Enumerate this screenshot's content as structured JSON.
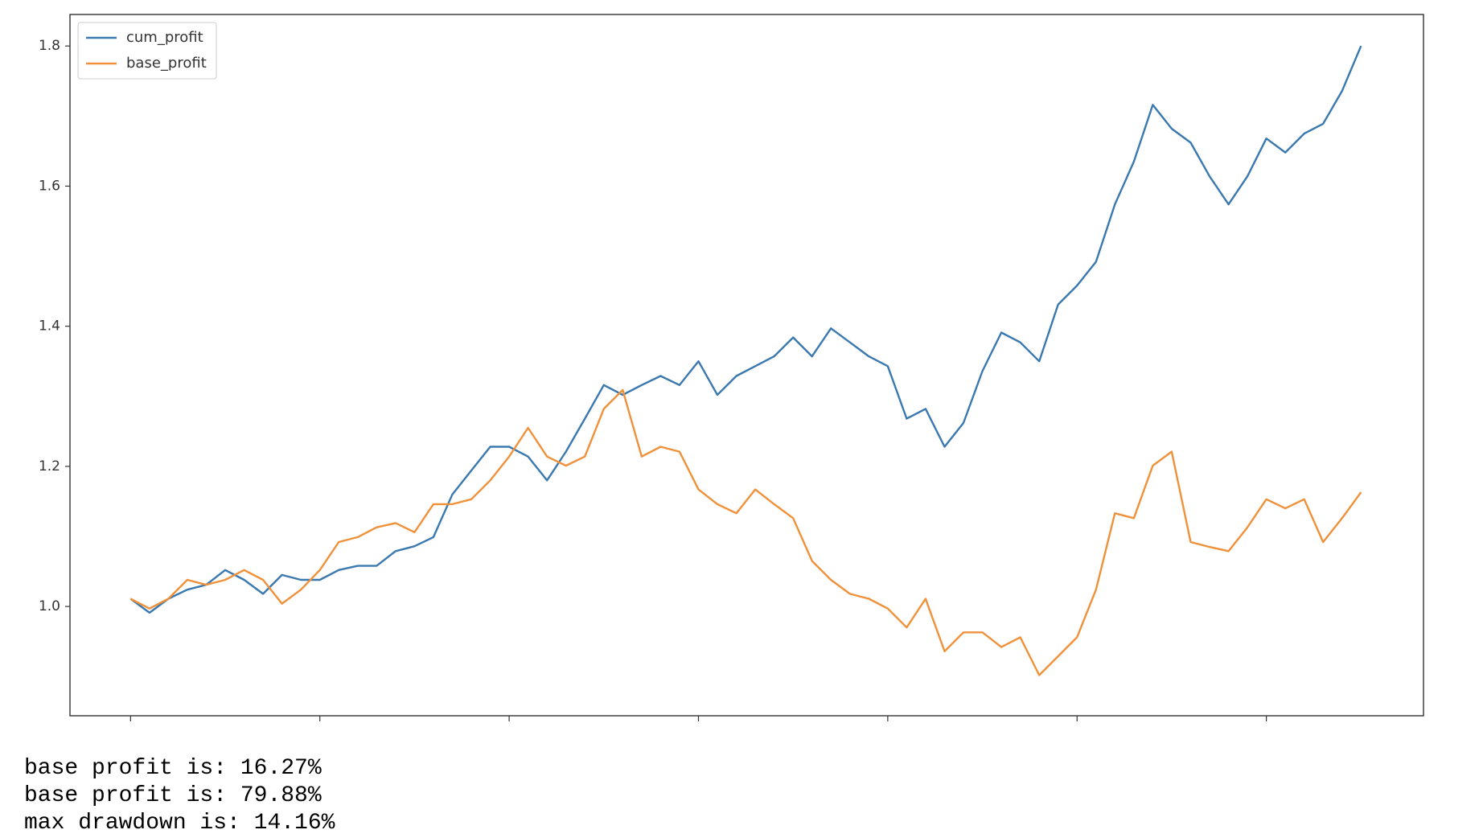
{
  "chart_data": {
    "type": "line",
    "x": [
      0,
      20,
      40,
      60,
      80,
      100,
      120,
      140,
      160,
      180,
      200,
      220,
      240,
      260,
      280,
      300,
      320,
      340,
      360,
      380,
      400,
      420,
      440,
      460,
      480,
      500,
      520,
      540,
      560,
      580,
      600,
      620,
      640,
      660,
      680,
      700,
      720,
      740,
      760,
      780,
      800,
      820,
      840,
      860,
      880,
      900,
      920,
      940,
      960,
      980,
      1000,
      1020,
      1040,
      1060,
      1080,
      1100,
      1120,
      1140,
      1160,
      1180,
      1200,
      1220,
      1240,
      1260,
      1280,
      1300
    ],
    "series": [
      {
        "name": "cum_profit",
        "color": "#3a78b0",
        "values": [
          1.011,
          0.991,
          1.011,
          1.024,
          1.031,
          1.052,
          1.038,
          1.018,
          1.045,
          1.038,
          1.038,
          1.052,
          1.058,
          1.058,
          1.079,
          1.086,
          1.099,
          1.16,
          1.194,
          1.228,
          1.228,
          1.214,
          1.18,
          1.221,
          1.268,
          1.316,
          1.302,
          1.316,
          1.329,
          1.316,
          1.35,
          1.302,
          1.329,
          1.343,
          1.357,
          1.384,
          1.357,
          1.397,
          1.377,
          1.357,
          1.343,
          1.268,
          1.282,
          1.228,
          1.262,
          1.336,
          1.391,
          1.377,
          1.35,
          1.431,
          1.458,
          1.492,
          1.574,
          1.635,
          1.716,
          1.682,
          1.662,
          1.614,
          1.574,
          1.614,
          1.668,
          1.648,
          1.675,
          1.689,
          1.736,
          1.8
        ]
      },
      {
        "name": "base_profit",
        "color": "#f0913a",
        "values": [
          1.011,
          0.997,
          1.011,
          1.038,
          1.031,
          1.038,
          1.052,
          1.038,
          1.004,
          1.024,
          1.052,
          1.092,
          1.099,
          1.113,
          1.119,
          1.106,
          1.146,
          1.146,
          1.153,
          1.18,
          1.214,
          1.255,
          1.214,
          1.201,
          1.214,
          1.282,
          1.309,
          1.214,
          1.228,
          1.221,
          1.167,
          1.146,
          1.133,
          1.167,
          1.146,
          1.126,
          1.065,
          1.038,
          1.018,
          1.011,
          0.997,
          0.97,
          1.011,
          0.936,
          0.963,
          0.963,
          0.942,
          0.956,
          0.902,
          0.929,
          0.956,
          1.024,
          1.133,
          1.126,
          1.201,
          1.221,
          1.092,
          1.085,
          1.079,
          1.113,
          1.153,
          1.14,
          1.153,
          1.092,
          1.126,
          1.163
        ]
      }
    ],
    "xlim": [
      -64,
      1366
    ],
    "xticks": [
      0,
      200,
      400,
      600,
      800,
      1000,
      1200
    ],
    "ylim": [
      0.844,
      1.845
    ],
    "yticks": [
      {
        "value": 1,
        "label": "1.0"
      },
      1.2,
      1.4,
      1.6,
      1.8
    ],
    "grid": false,
    "legend": "upper left"
  },
  "output_lines": [
    "base profit is: 16.27%",
    "base profit is: 79.88%",
    "max drawdown is: 14.16%"
  ]
}
